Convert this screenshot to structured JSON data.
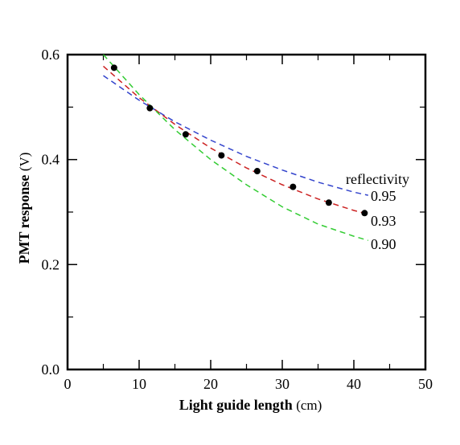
{
  "chart_data": {
    "type": "scatter",
    "xlabel": "Light guide length",
    "xunit": "(cm)",
    "ylabel": "PMT response",
    "yunit": "(V)",
    "xlim": [
      0,
      50
    ],
    "ylim": [
      0,
      0.6
    ],
    "x_ticks": [
      0,
      10,
      20,
      30,
      40,
      50
    ],
    "x_tick_labels": [
      "0",
      "10",
      "20",
      "30",
      "40",
      "50"
    ],
    "y_ticks": [
      0.0,
      0.2,
      0.4,
      0.6
    ],
    "y_tick_labels": [
      "0.0",
      "0.2",
      "0.4",
      "0.6"
    ],
    "grid": false,
    "series": [
      {
        "kind": "points",
        "color": "#000000",
        "x": [
          6.5,
          11.5,
          16.5,
          21.5,
          26.5,
          31.5,
          36.5,
          41.5
        ],
        "y": [
          0.575,
          0.498,
          0.448,
          0.408,
          0.378,
          0.348,
          0.318,
          0.298
        ]
      },
      {
        "kind": "dashed-line",
        "name": "0.95",
        "color": "#3344cc",
        "x": [
          5,
          10,
          15,
          20,
          25,
          30,
          35,
          40,
          42
        ],
        "y": [
          0.56,
          0.513,
          0.472,
          0.437,
          0.406,
          0.38,
          0.357,
          0.338,
          0.332
        ]
      },
      {
        "kind": "dashed-line",
        "name": "0.93",
        "color": "#cc2222",
        "x": [
          5,
          10,
          15,
          20,
          25,
          30,
          35,
          40,
          42
        ],
        "y": [
          0.578,
          0.518,
          0.467,
          0.422,
          0.384,
          0.352,
          0.325,
          0.303,
          0.296
        ]
      },
      {
        "kind": "dashed-line",
        "name": "0.90",
        "color": "#33cc33",
        "x": [
          5,
          10,
          15,
          20,
          25,
          30,
          35,
          40,
          42
        ],
        "y": [
          0.6,
          0.524,
          0.457,
          0.4,
          0.352,
          0.31,
          0.277,
          0.254,
          0.246
        ]
      }
    ],
    "annotations": {
      "header": "reflectivity",
      "labels": [
        "0.95",
        "0.93",
        "0.90"
      ]
    }
  }
}
